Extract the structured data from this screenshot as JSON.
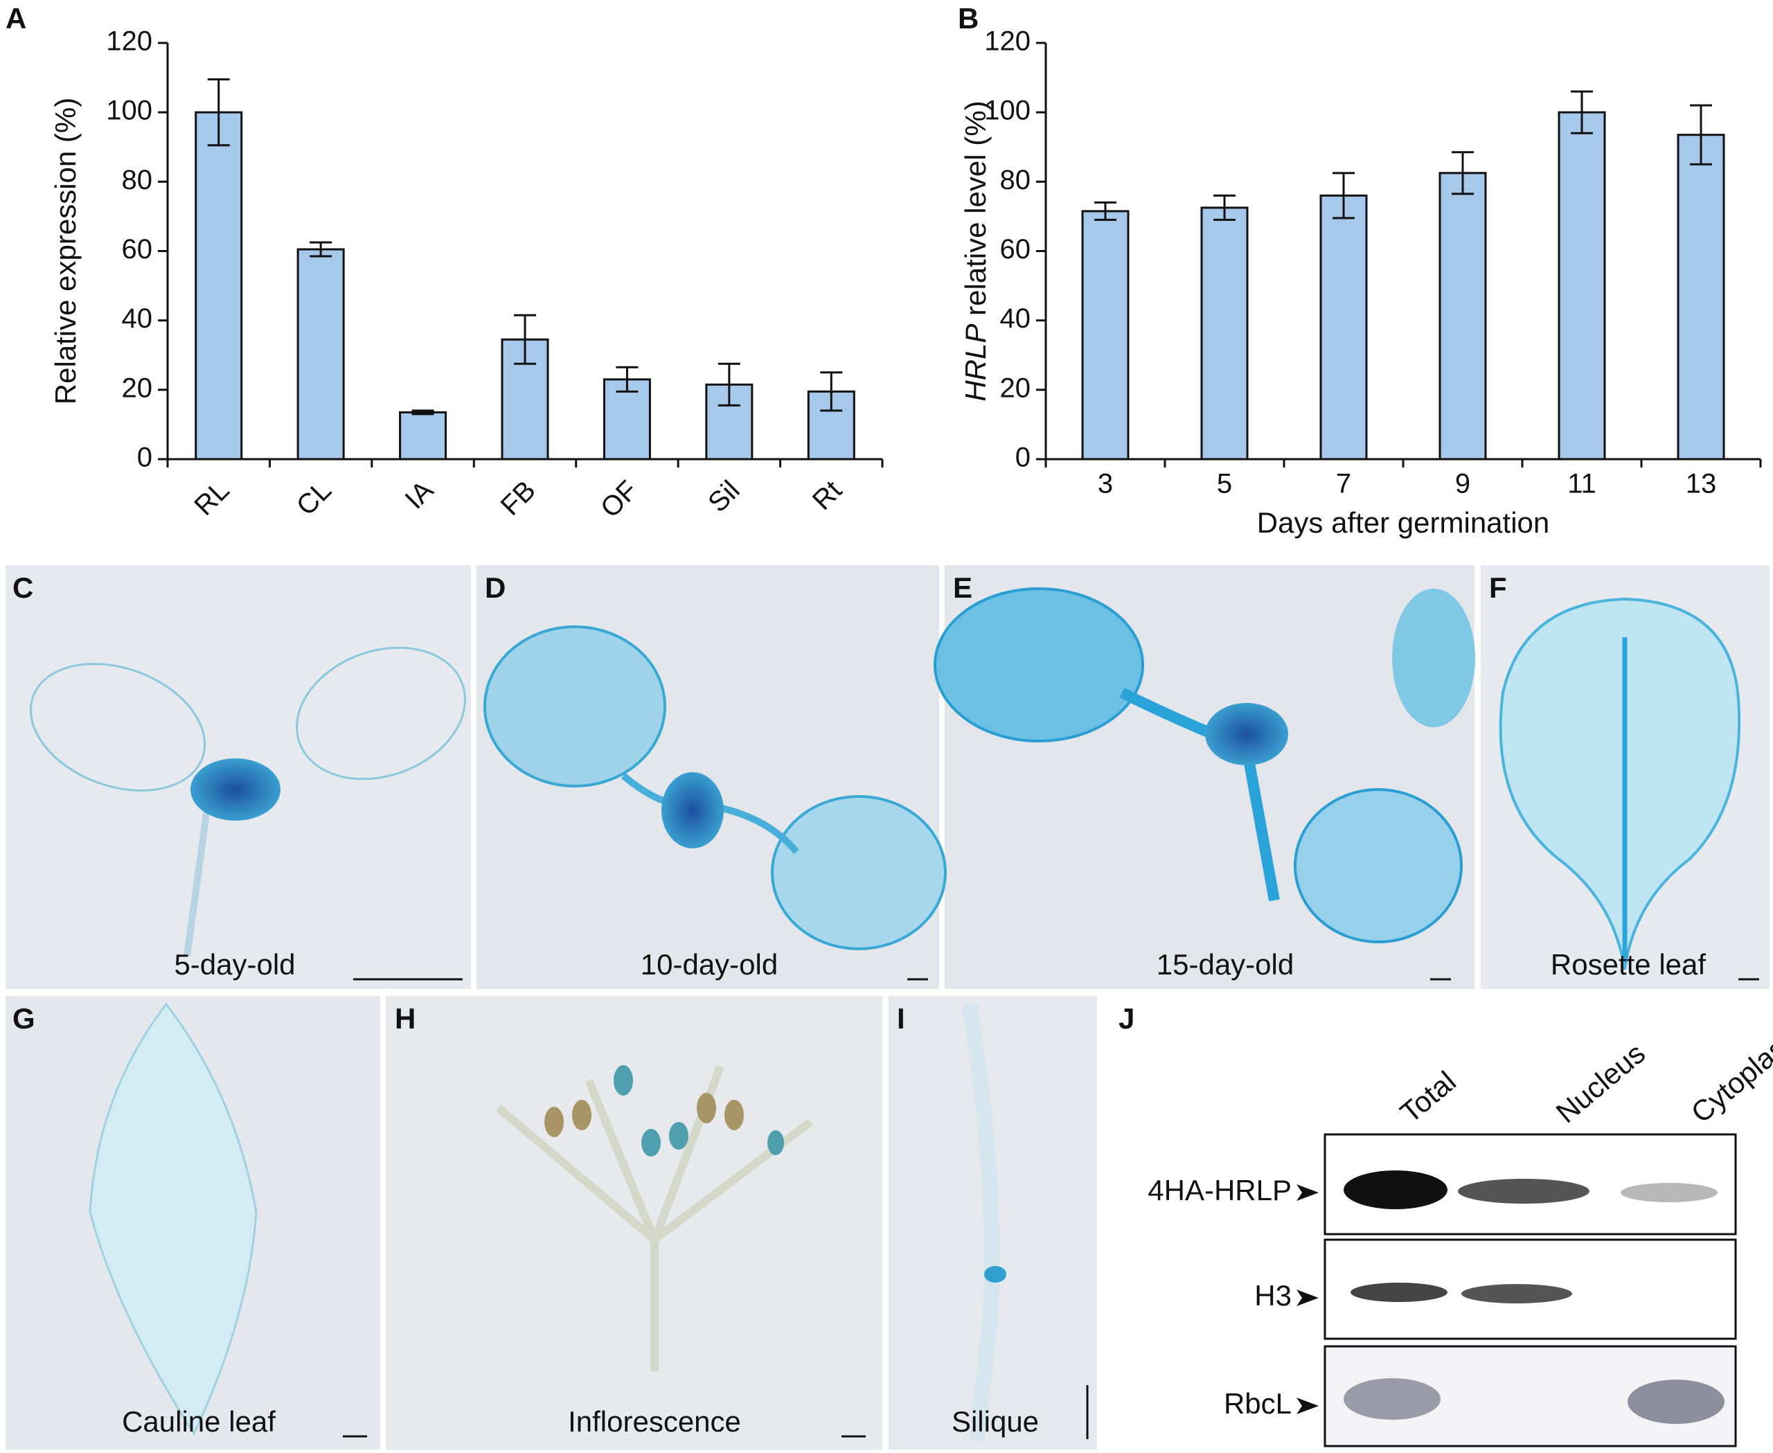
{
  "chart_data": [
    {
      "type": "bar",
      "label": "A",
      "y_label": "Relative expression (%)",
      "categories": [
        "RL",
        "CL",
        "IA",
        "FB",
        "OF",
        "Sil",
        "Rt"
      ],
      "values": [
        100,
        60.5,
        13.5,
        34.5,
        23,
        21.5,
        19.5
      ],
      "errors": [
        9.5,
        2,
        0.5,
        7,
        3.5,
        6,
        5.5
      ],
      "color": "#a6c8ea",
      "ylim": [
        0,
        120
      ],
      "yticks": [
        0,
        20,
        40,
        60,
        80,
        100,
        120
      ]
    },
    {
      "type": "bar",
      "label": "B",
      "y_label_italic": "HRLP",
      "y_label": " relative level (%)",
      "x_label": "Days after germination",
      "categories": [
        "3",
        "5",
        "7",
        "9",
        "11",
        "13"
      ],
      "values": [
        71.5,
        72.5,
        76,
        82.5,
        100,
        93.5
      ],
      "errors": [
        2.5,
        3.5,
        6.5,
        6,
        6,
        8.5
      ],
      "color": "#a6c8ea",
      "ylim": [
        0,
        120
      ],
      "yticks": [
        0,
        20,
        40,
        60,
        80,
        100,
        120
      ]
    }
  ],
  "panels": [
    {
      "label": "C",
      "caption": "5-day-old"
    },
    {
      "label": "D",
      "caption": "10-day-old"
    },
    {
      "label": "E",
      "caption": "15-day-old"
    },
    {
      "label": "F",
      "caption": "Rosette leaf"
    },
    {
      "label": "G",
      "caption": "Cauline leaf"
    },
    {
      "label": "H",
      "caption": "Inflorescence"
    },
    {
      "label": "I",
      "caption": "Silique"
    }
  ],
  "blot": {
    "label": "J",
    "columns": [
      "Total",
      "Nucleus",
      "Cytoplasm"
    ],
    "rows": [
      "4HA-HRLP",
      "H3",
      "RbcL"
    ]
  }
}
